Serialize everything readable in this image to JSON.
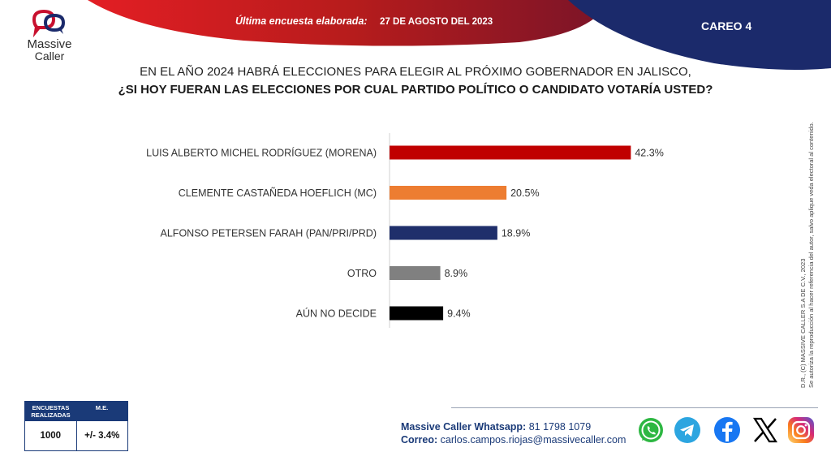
{
  "header": {
    "survey_label": "Última encuesta elaborada:",
    "survey_date": "27 DE AGOSTO DEL 2023",
    "careo": "CAREO 4",
    "logo_name": "Massive",
    "logo_sub": "Caller"
  },
  "question": {
    "line1": "EN EL AÑO 2024 HABRÁ ELECCIONES PARA ELEGIR AL PRÓXIMO GOBERNADOR EN JALISCO,",
    "line2": "¿SI HOY FUERAN LAS ELECCIONES POR CUAL PARTIDO POLÍTICO O CANDIDATO VOTARÍA USTED?"
  },
  "chart_data": {
    "type": "bar",
    "orientation": "horizontal",
    "categories": [
      "LUIS ALBERTO MICHEL RODRÍGUEZ (MORENA)",
      "CLEMENTE CASTAÑEDA HOEFLICH (MC)",
      "ALFONSO PETERSEN FARAH (PAN/PRI/PRD)",
      "OTRO",
      "AÚN NO DECIDE"
    ],
    "values": [
      42.3,
      20.5,
      18.9,
      8.9,
      9.4
    ],
    "labels": [
      "42.3%",
      "20.5%",
      "18.9%",
      "8.9%",
      "9.4%"
    ],
    "colors": [
      "#c00000",
      "#ed7d31",
      "#1f2f6b",
      "#808080",
      "#000000"
    ],
    "xlim": [
      0,
      60
    ],
    "grid": false
  },
  "legal": {
    "line1": "D.R., (C) MASSIVE CALLER S.A DE C.V., 2023",
    "line2": "Se autoriza la reproducción al hacer referencia del autor, salvo aplique veda electoral al contenido."
  },
  "stats": {
    "col1_header": "ENCUESTAS REALIZADAS",
    "col2_header": "M.E.",
    "col1_value": "1000",
    "col2_value": "+/- 3.4%"
  },
  "contact": {
    "whatsapp_label": "Massive Caller Whatsapp:",
    "whatsapp_number": "81 1798 1079",
    "email_label": "Correo:",
    "email": "carlos.campos.riojas@massivecaller.com"
  },
  "social_icons": [
    "whatsapp-icon",
    "telegram-icon",
    "facebook-icon",
    "x-icon",
    "instagram-icon"
  ]
}
